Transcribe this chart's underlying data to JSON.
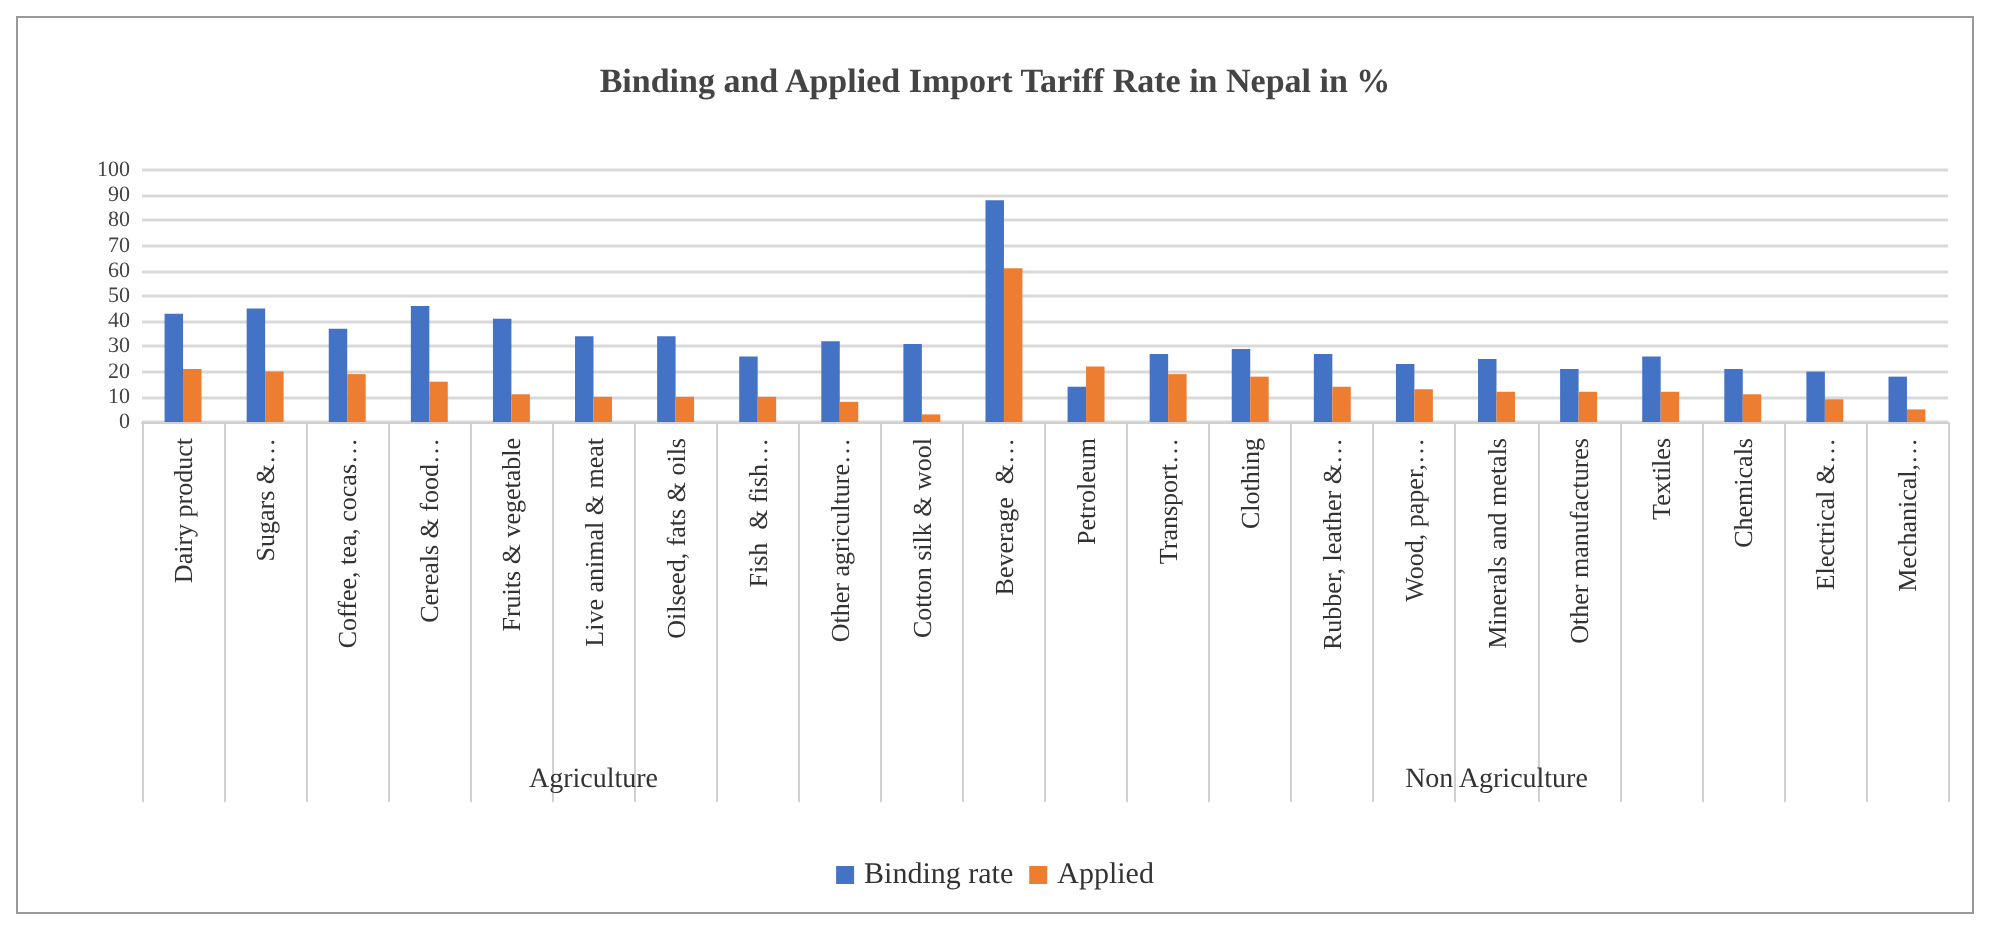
{
  "chart_data": {
    "type": "bar",
    "title": "Binding and Applied Import Tariff Rate in Nepal in %",
    "categories": [
      "Dairy product",
      "Sugars &…",
      "Coffee, tea, cocas…",
      "Cereals & food…",
      "Fruits & vegetable",
      "Live animal & meat",
      "Oilseed, fats & oils",
      "Fish  & fish…",
      "Other agriculture…",
      "Cotton silk & wool",
      "Beverage  &…",
      "Petroleum",
      "Transport…",
      "Clothing",
      "Rubber, leather &…",
      "Wood, paper,…",
      "Minerals and metals",
      "Other manufactures",
      "Textiles",
      "Chemicals",
      "Electrical &…",
      "Mechanical,…"
    ],
    "series": [
      {
        "name": "Binding rate",
        "color": "#4472c4",
        "values": [
          43,
          45,
          37,
          46,
          41,
          34,
          34,
          26,
          32,
          31,
          88,
          14,
          27,
          29,
          27,
          23,
          25,
          21,
          26,
          21,
          20,
          18
        ]
      },
      {
        "name": "Applied",
        "color": "#ed7d31",
        "values": [
          21,
          20,
          19,
          16,
          11,
          10,
          10,
          10,
          8,
          3,
          61,
          22,
          19,
          18,
          14,
          13,
          12,
          12,
          12,
          11,
          9,
          5
        ]
      }
    ],
    "annotations": [
      "Agriculture",
      "Non Agriculture"
    ],
    "ylim": [
      0,
      100
    ],
    "yticks": [
      0,
      10,
      20,
      30,
      40,
      50,
      60,
      70,
      80,
      90,
      100
    ],
    "grid": "y",
    "legend": "bottom"
  }
}
